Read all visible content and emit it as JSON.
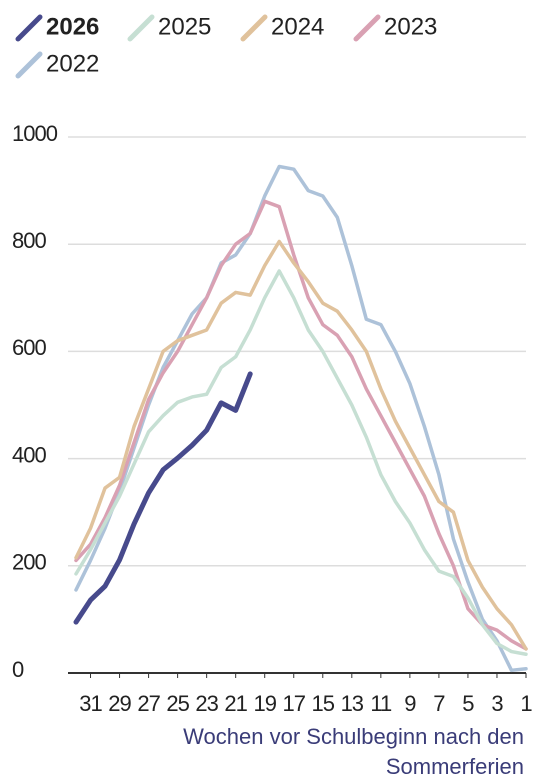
{
  "chart_data": {
    "type": "line",
    "x": [
      32,
      31,
      30,
      29,
      28,
      27,
      26,
      25,
      24,
      23,
      22,
      21,
      20,
      19,
      18,
      17,
      16,
      15,
      14,
      13,
      12,
      11,
      10,
      9,
      8,
      7,
      6,
      5,
      4,
      3,
      2,
      1
    ],
    "xlim": [
      32,
      1
    ],
    "xticks": [
      31,
      29,
      27,
      25,
      23,
      21,
      19,
      17,
      15,
      13,
      11,
      9,
      7,
      5,
      3,
      1
    ],
    "ylim": [
      0,
      1000
    ],
    "yticks": [
      0,
      200,
      400,
      600,
      800,
      1000
    ],
    "grid": true,
    "xlabel": "Wochen vor Schulbeginn nach den Sommerferien",
    "series": [
      {
        "name": "2026",
        "color": "#474a8c",
        "values": [
          95,
          136,
          162,
          211,
          278,
          336,
          379,
          401,
          425,
          453,
          504,
          490,
          558,
          null,
          null,
          null,
          null,
          null,
          null,
          null,
          null,
          null,
          null,
          null,
          null,
          null,
          null,
          null,
          null,
          null,
          null,
          null
        ]
      },
      {
        "name": "2025",
        "color": "#c6dfd3",
        "values": [
          185,
          230,
          280,
          330,
          390,
          450,
          480,
          505,
          515,
          520,
          570,
          590,
          640,
          700,
          750,
          700,
          640,
          600,
          550,
          500,
          440,
          370,
          320,
          280,
          230,
          190,
          180,
          140,
          90,
          55,
          40,
          35
        ]
      },
      {
        "name": "2024",
        "color": "#e0c29c",
        "values": [
          215,
          270,
          345,
          365,
          460,
          530,
          600,
          620,
          630,
          640,
          690,
          710,
          705,
          760,
          805,
          765,
          730,
          690,
          675,
          640,
          600,
          530,
          470,
          420,
          370,
          320,
          300,
          210,
          160,
          120,
          90,
          45
        ]
      },
      {
        "name": "2023",
        "color": "#d9a1b3",
        "values": [
          210,
          240,
          290,
          350,
          430,
          510,
          560,
          600,
          650,
          700,
          760,
          800,
          820,
          880,
          870,
          780,
          700,
          650,
          630,
          590,
          530,
          480,
          430,
          380,
          330,
          260,
          200,
          120,
          90,
          80,
          60,
          45
        ]
      },
      {
        "name": "2022",
        "color": "#adc2d9",
        "values": [
          155,
          210,
          270,
          340,
          420,
          500,
          570,
          620,
          670,
          700,
          765,
          780,
          820,
          890,
          945,
          940,
          900,
          890,
          850,
          760,
          660,
          650,
          600,
          540,
          460,
          370,
          250,
          170,
          100,
          60,
          5,
          8
        ]
      }
    ]
  }
}
